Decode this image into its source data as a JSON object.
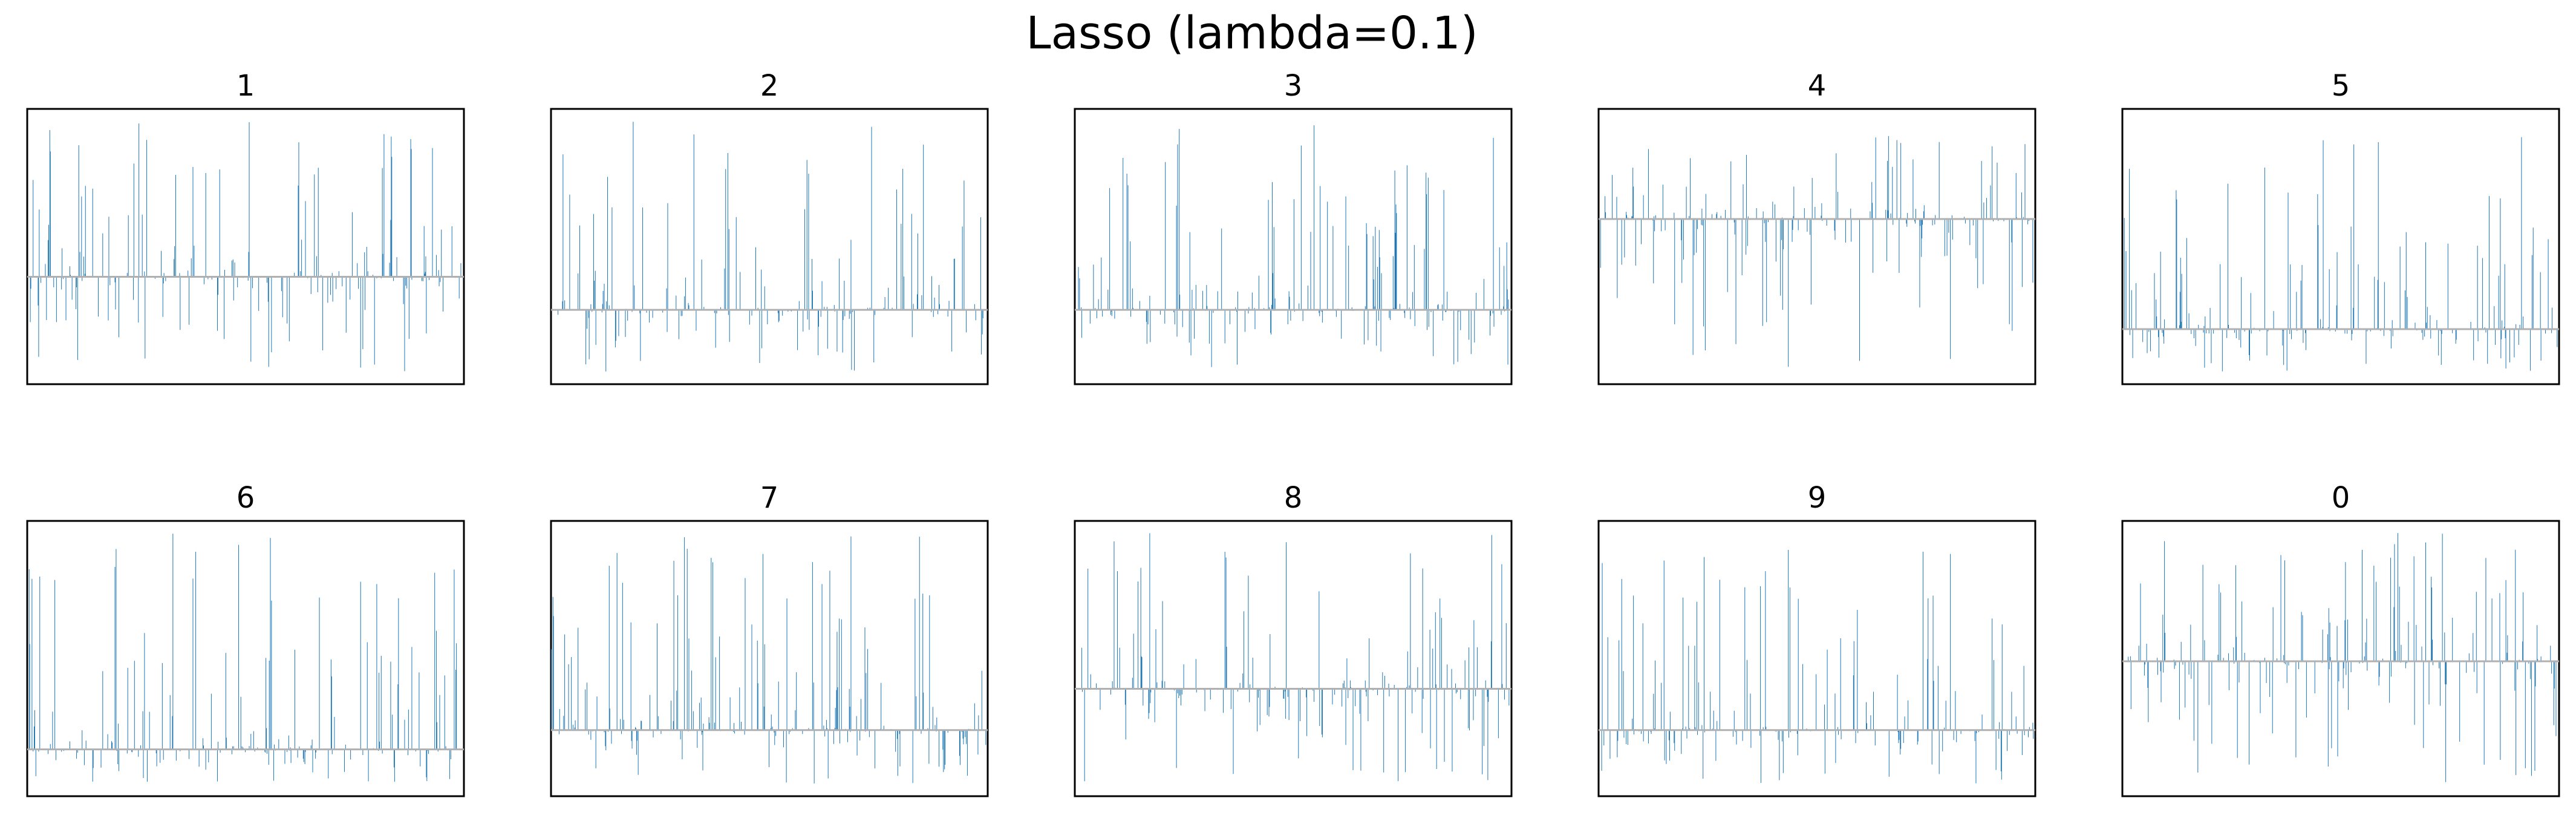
{
  "figure": {
    "suptitle": "Lasso (lambda=0.1)"
  },
  "colors": {
    "bars": "#1f77b4",
    "baseline": "#b0b0b0",
    "frame": "#000000",
    "background": "#ffffff"
  },
  "chart_data": [
    {
      "type": "bar",
      "title": "1",
      "n_features": 784,
      "baseline_frac": 0.61,
      "ylim_desc": "coefficients of class 1 per pixel; zero line at 61% from top",
      "ticks": "none"
    },
    {
      "type": "bar",
      "title": "2",
      "n_features": 784,
      "baseline_frac": 0.73,
      "ticks": "none"
    },
    {
      "type": "bar",
      "title": "3",
      "n_features": 784,
      "baseline_frac": 0.73,
      "ticks": "none"
    },
    {
      "type": "bar",
      "title": "4",
      "n_features": 784,
      "baseline_frac": 0.4,
      "ticks": "none"
    },
    {
      "type": "bar",
      "title": "5",
      "n_features": 784,
      "baseline_frac": 0.8,
      "ticks": "none"
    },
    {
      "type": "bar",
      "title": "6",
      "n_features": 784,
      "baseline_frac": 0.83,
      "ticks": "none"
    },
    {
      "type": "bar",
      "title": "7",
      "n_features": 784,
      "baseline_frac": 0.76,
      "ticks": "none"
    },
    {
      "type": "bar",
      "title": "8",
      "n_features": 784,
      "baseline_frac": 0.61,
      "ticks": "none"
    },
    {
      "type": "bar",
      "title": "9",
      "n_features": 784,
      "baseline_frac": 0.76,
      "ticks": "none"
    },
    {
      "type": "bar",
      "title": "0",
      "n_features": 784,
      "baseline_frac": 0.51,
      "ticks": "none"
    }
  ]
}
